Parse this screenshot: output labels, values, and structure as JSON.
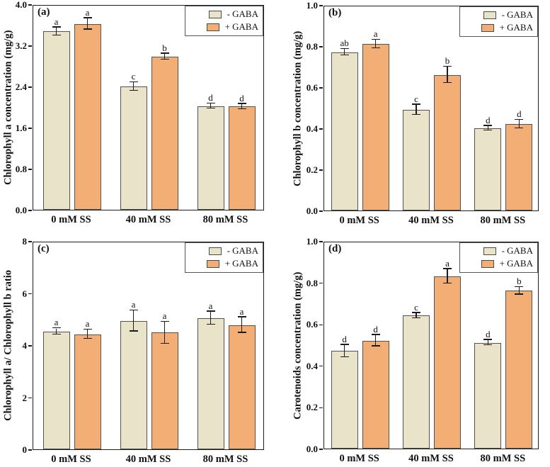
{
  "colors": {
    "minus_gaba": "#E9E3C9",
    "plus_gaba": "#F2AE74",
    "bar_border": "#55524C",
    "axis": "#1C1C1C",
    "text": "#111111"
  },
  "legend": {
    "position": "top-right",
    "items": [
      {
        "label": "- GABA"
      },
      {
        "label": "+ GABA"
      }
    ]
  },
  "chart_data": [
    {
      "type": "bar",
      "panel": "(a)",
      "ylabel": "Chlorophyll a concentration (mg/g)",
      "xlabel": "",
      "categories": [
        "0 mM SS",
        "40 mM SS",
        "80 mM SS"
      ],
      "ylim": [
        0,
        4.0
      ],
      "yticks": [
        "0.0",
        "0.8",
        "1.6",
        "2.4",
        "3.2",
        "4.0"
      ],
      "grid": false,
      "legend_position": "top-right",
      "series": [
        {
          "name": "- GABA",
          "values": [
            3.47,
            2.4,
            2.02
          ],
          "errors": [
            0.08,
            0.08,
            0.05
          ],
          "letters": [
            "a",
            "c",
            "d"
          ]
        },
        {
          "name": "+ GABA",
          "values": [
            3.62,
            2.98,
            2.01
          ],
          "errors": [
            0.11,
            0.06,
            0.05
          ],
          "letters": [
            "a",
            "b",
            "d"
          ]
        }
      ]
    },
    {
      "type": "bar",
      "panel": "(b)",
      "ylabel": "Chlorophyll b concentration (mg/g)",
      "xlabel": "",
      "categories": [
        "0 mM SS",
        "40 mM SS",
        "80 mM SS"
      ],
      "ylim": [
        0,
        1.0
      ],
      "yticks": [
        "0.0",
        "0.2",
        "0.4",
        "0.6",
        "0.8",
        "1.0"
      ],
      "grid": false,
      "legend_position": "top-right",
      "series": [
        {
          "name": "- GABA",
          "values": [
            0.77,
            0.49,
            0.4
          ],
          "errors": [
            0.015,
            0.025,
            0.012
          ],
          "letters": [
            "ab",
            "c",
            "d"
          ]
        },
        {
          "name": "+ GABA",
          "values": [
            0.81,
            0.66,
            0.42
          ],
          "errors": [
            0.02,
            0.04,
            0.02
          ],
          "letters": [
            "a",
            "b",
            "d"
          ]
        }
      ]
    },
    {
      "type": "bar",
      "panel": "(c)",
      "ylabel": "Chlorophyll a/ Chlorophyll b ratio",
      "xlabel": "",
      "categories": [
        "0 mM SS",
        "40 mM SS",
        "80 mM SS"
      ],
      "ylim": [
        0,
        8
      ],
      "yticks": [
        "0",
        "2",
        "4",
        "6",
        "8"
      ],
      "grid": false,
      "legend_position": "top-right",
      "series": [
        {
          "name": "- GABA",
          "values": [
            4.52,
            4.93,
            5.04
          ],
          "errors": [
            0.12,
            0.4,
            0.25
          ],
          "letters": [
            "a",
            "a",
            "a"
          ]
        },
        {
          "name": "+ GABA",
          "values": [
            4.42,
            4.48,
            4.77
          ],
          "errors": [
            0.17,
            0.42,
            0.3
          ],
          "letters": [
            "a",
            "a",
            "a"
          ]
        }
      ]
    },
    {
      "type": "bar",
      "panel": "(d)",
      "ylabel": "Carotenoids concentration (mg/g)",
      "xlabel": "",
      "categories": [
        "0 mM SS",
        "40 mM SS",
        "80 mM SS"
      ],
      "ylim": [
        0,
        1.0
      ],
      "yticks": [
        "0.0",
        "0.2",
        "0.4",
        "0.6",
        "0.8",
        "1.0"
      ],
      "grid": false,
      "legend_position": "top-right",
      "series": [
        {
          "name": "- GABA",
          "values": [
            0.47,
            0.64,
            0.51
          ],
          "errors": [
            0.03,
            0.013,
            0.013
          ],
          "letters": [
            "d",
            "c",
            "d"
          ]
        },
        {
          "name": "+ GABA",
          "values": [
            0.52,
            0.83,
            0.76
          ],
          "errors": [
            0.027,
            0.035,
            0.018
          ],
          "letters": [
            "d",
            "a",
            "b"
          ]
        }
      ]
    }
  ]
}
